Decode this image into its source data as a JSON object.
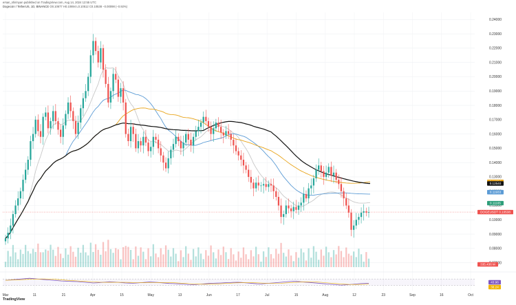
{
  "header": {
    "publisher": "ersan_shirinyan published on TradingView.com, Aug 14, 2024 12:55 UTC",
    "symbol": "Dogecoin / TetherUS, 1D, BINANCE",
    "ohlc": "O0.10677 H0.10694 L0.10512 C0.10538 −0.00098 (−0.92%)"
  },
  "brand": "TradingView",
  "chart_data": {
    "type": "candlestick",
    "title": "Dogecoin / TetherUS, 1D, BINANCE",
    "price_axis": {
      "ylim": [
        0.065,
        0.245
      ],
      "ticks": [
        "0.24000",
        "0.23000",
        "0.22000",
        "0.21000",
        "0.20000",
        "0.19000",
        "0.18000",
        "0.17000",
        "0.16000",
        "0.15000",
        "0.14000",
        "0.13000",
        "0.12000",
        "0.11000",
        "0.10000",
        "0.09000",
        "0.08000",
        "0.07000"
      ]
    },
    "time_axis": {
      "labels": [
        "Mar",
        "11",
        "21",
        "Apr",
        "15",
        "May",
        "13",
        "Jun",
        "17",
        "Jul",
        "15",
        "Aug",
        "12",
        "23",
        "Sep",
        "16",
        "Oct"
      ]
    },
    "candles_close": [
      0.087,
      0.091,
      0.096,
      0.104,
      0.11,
      0.115,
      0.12,
      0.128,
      0.135,
      0.142,
      0.155,
      0.16,
      0.17,
      0.162,
      0.158,
      0.172,
      0.175,
      0.164,
      0.169,
      0.176,
      0.169,
      0.163,
      0.158,
      0.166,
      0.174,
      0.182,
      0.176,
      0.169,
      0.16,
      0.168,
      0.178,
      0.185,
      0.19,
      0.2,
      0.215,
      0.225,
      0.218,
      0.21,
      0.22,
      0.205,
      0.195,
      0.182,
      0.19,
      0.202,
      0.198,
      0.186,
      0.192,
      0.182,
      0.16,
      0.155,
      0.165,
      0.16,
      0.15,
      0.155,
      0.152,
      0.158,
      0.154,
      0.148,
      0.151,
      0.158,
      0.156,
      0.15,
      0.145,
      0.14,
      0.136,
      0.143,
      0.149,
      0.153,
      0.158,
      0.155,
      0.15,
      0.154,
      0.16,
      0.156,
      0.152,
      0.158,
      0.162,
      0.165,
      0.168,
      0.172,
      0.169,
      0.165,
      0.16,
      0.164,
      0.168,
      0.165,
      0.161,
      0.159,
      0.162,
      0.16,
      0.156,
      0.152,
      0.148,
      0.145,
      0.142,
      0.138,
      0.135,
      0.13,
      0.126,
      0.122,
      0.126,
      0.124,
      0.124,
      0.125,
      0.123,
      0.125,
      0.124,
      0.12,
      0.116,
      0.11,
      0.102,
      0.104,
      0.11,
      0.108,
      0.106,
      0.109,
      0.107,
      0.11,
      0.112,
      0.118,
      0.115,
      0.122,
      0.124,
      0.129,
      0.135,
      0.138,
      0.134,
      0.13,
      0.133,
      0.137,
      0.131,
      0.133,
      0.128,
      0.125,
      0.12,
      0.115,
      0.11,
      0.105,
      0.093,
      0.096,
      0.1,
      0.102,
      0.105,
      0.106,
      0.105,
      0.1054
    ],
    "moving_averages": [
      {
        "name": "MA 20",
        "color": "#c8c8c8",
        "last": 0.112
      },
      {
        "name": "MA 50",
        "color": "#5b9bd5",
        "last": 0.118
      },
      {
        "name": "MA 100",
        "color": "#e8a317",
        "last": 0.1265
      },
      {
        "name": "MA 200",
        "color": "#111111",
        "last": 0.1254
      }
    ],
    "price_tags": [
      {
        "label": "0.12654",
        "value": 0.12654,
        "color": "#e8a317"
      },
      {
        "label": "0.12540",
        "value": 0.1254,
        "color": "#111111"
      },
      {
        "label": "0.11933",
        "value": 0.11933,
        "color": "#5b9bd5"
      },
      {
        "label": "0.11165",
        "value": 0.11165,
        "color": "#2e9e7a"
      },
      {
        "label": "DOGEUSDT 0.10538",
        "value": 0.10538,
        "color": "#ef5350"
      }
    ],
    "volume_label": "335.436 M",
    "rsi": {
      "ylim": [
        0,
        100
      ],
      "upper": 70,
      "lower": 30,
      "labels": [
        "43.96",
        "38.24"
      ],
      "values": [
        62,
        64,
        66,
        68,
        70,
        72,
        74,
        72,
        70,
        68,
        66,
        64,
        62,
        60,
        58,
        57,
        56,
        55,
        54,
        52,
        50,
        48,
        46,
        47,
        49,
        51,
        53,
        52,
        50,
        48,
        46,
        45,
        44,
        46,
        48,
        50,
        52,
        51,
        49,
        47,
        45,
        43,
        42,
        41,
        40,
        38,
        36,
        35,
        37,
        39,
        41,
        43,
        44,
        45,
        46,
        47,
        48,
        49,
        50,
        49,
        47,
        45,
        43,
        41,
        40,
        42,
        44,
        46,
        48,
        50,
        52,
        54,
        56,
        55,
        53,
        51,
        49,
        47,
        45,
        43,
        41,
        39,
        37,
        35,
        33,
        34,
        36,
        38,
        40,
        42,
        43,
        44
      ]
    }
  }
}
